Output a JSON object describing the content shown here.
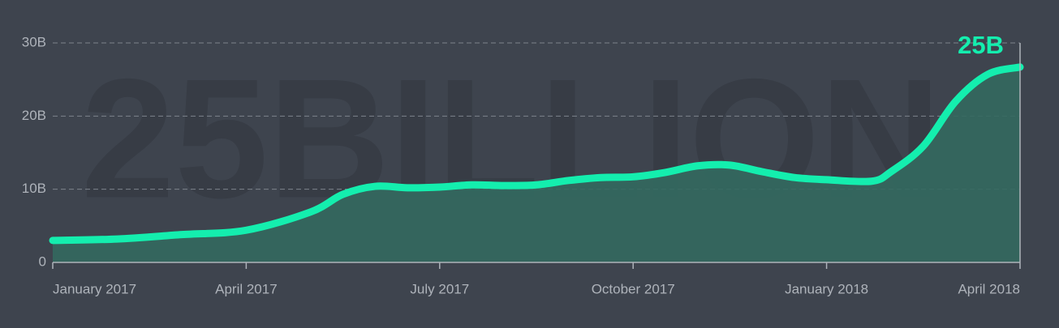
{
  "chart_data": {
    "type": "area",
    "watermark": "25BILLION",
    "annotation": "25B",
    "color": "#14eeae",
    "fill": "#33695f",
    "grid": true,
    "x": [
      0,
      1,
      2,
      3,
      4,
      4.5,
      5,
      5.5,
      6,
      6.5,
      7,
      7.5,
      8,
      8.5,
      9,
      9.5,
      10,
      10.5,
      11,
      11.5,
      12,
      12.7,
      13,
      13.5,
      14,
      14.5,
      15
    ],
    "values": [
      3.0,
      3.2,
      3.8,
      4.4,
      6.9,
      9.3,
      10.4,
      10.2,
      10.3,
      10.6,
      10.5,
      10.6,
      11.2,
      11.6,
      11.7,
      12.3,
      13.2,
      13.3,
      12.4,
      11.6,
      11.3,
      11.1,
      12.4,
      15.9,
      22.0,
      25.7,
      26.7
    ],
    "xlim": [
      0,
      15
    ],
    "xticks": [
      {
        "value": 0,
        "label": "January 2017"
      },
      {
        "value": 3,
        "label": "April 2017"
      },
      {
        "value": 6,
        "label": "July 2017"
      },
      {
        "value": 9,
        "label": "October 2017"
      },
      {
        "value": 12,
        "label": "January 2018"
      },
      {
        "value": 15,
        "label": "April 2018"
      }
    ],
    "ylim": [
      0,
      30
    ],
    "yticks": [
      0,
      {
        "value": 10,
        "label": "10B"
      },
      {
        "value": 20,
        "label": "20B"
      },
      {
        "value": 30,
        "label": "30B"
      }
    ]
  }
}
